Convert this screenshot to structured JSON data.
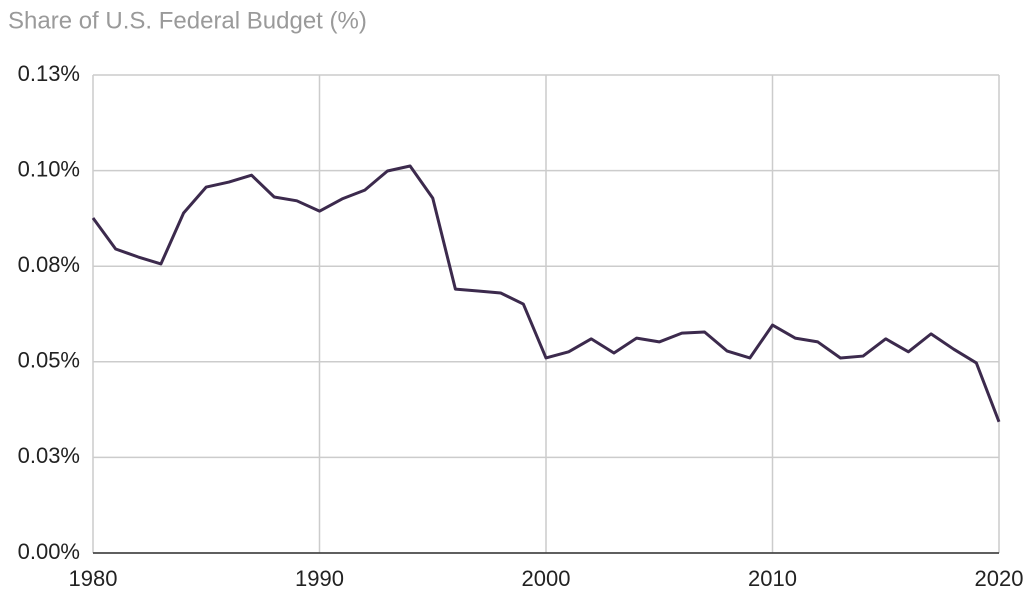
{
  "chart_data": {
    "type": "line",
    "title": "Share of U.S. Federal Budget (%)",
    "x": [
      1980,
      1981,
      1982,
      1983,
      1984,
      1985,
      1986,
      1987,
      1988,
      1989,
      1990,
      1991,
      1992,
      1993,
      1994,
      1995,
      1996,
      1997,
      1998,
      1999,
      2000,
      2001,
      2002,
      2003,
      2004,
      2005,
      2006,
      2007,
      2008,
      2009,
      2010,
      2011,
      2012,
      2013,
      2014,
      2015,
      2016,
      2017,
      2018,
      2019,
      2020
    ],
    "series": [
      {
        "name": "Share of U.S. Federal Budget (%)",
        "color": "#3c2a4d",
        "values": [
          0.0876,
          0.0795,
          0.0774,
          0.0756,
          0.0889,
          0.0957,
          0.097,
          0.0988,
          0.0931,
          0.0921,
          0.0894,
          0.0926,
          0.0949,
          0.0999,
          0.1012,
          0.0928,
          0.069,
          0.0685,
          0.068,
          0.0651,
          0.051,
          0.0526,
          0.056,
          0.0523,
          0.0562,
          0.0552,
          0.0575,
          0.0578,
          0.0528,
          0.051,
          0.0596,
          0.0562,
          0.0552,
          0.051,
          0.0515,
          0.056,
          0.0526,
          0.0573,
          0.0533,
          0.0497,
          0.0343
        ]
      }
    ],
    "xlim": [
      1980,
      2020
    ],
    "xticks": [
      1980,
      1990,
      2000,
      2010,
      2020
    ],
    "ylim": [
      0,
      0.125
    ],
    "yticks": [
      {
        "value": 0,
        "label": "0.00%"
      },
      {
        "value": 0.025,
        "label": "0.03%"
      },
      {
        "value": 0.05,
        "label": "0.05%"
      },
      {
        "value": 0.075,
        "label": "0.08%"
      },
      {
        "value": 0.1,
        "label": "0.10%"
      },
      {
        "value": 0.125,
        "label": "0.13%"
      }
    ],
    "grid": true
  }
}
